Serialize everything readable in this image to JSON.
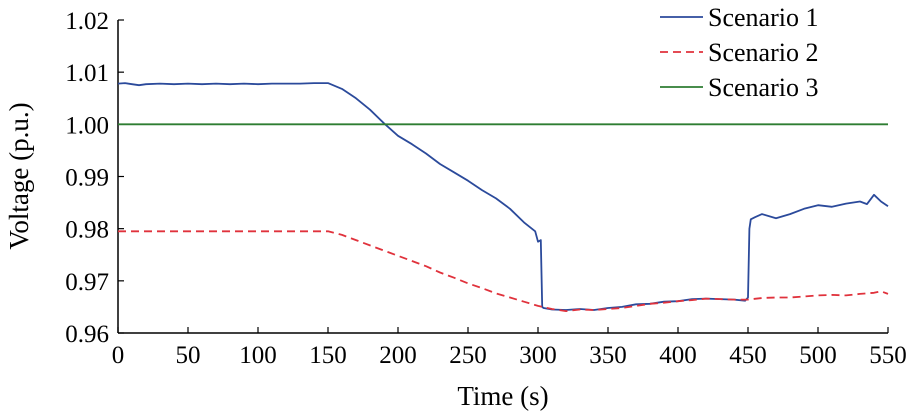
{
  "chart_data": {
    "type": "line",
    "xlabel": "Time (s)",
    "ylabel": "Voltage (p.u.)",
    "xlim": [
      0,
      550
    ],
    "ylim": [
      0.96,
      1.02
    ],
    "xticks": [
      "0",
      "50",
      "100",
      "150",
      "200",
      "250",
      "300",
      "350",
      "400",
      "450",
      "500",
      "550"
    ],
    "yticks": [
      "0.96",
      "0.97",
      "0.98",
      "0.99",
      "1.00",
      "1.01",
      "1.02"
    ],
    "grid": false,
    "legend_position": "top-right",
    "series": [
      {
        "name": "Scenario 1",
        "color": "#2b4a9b",
        "style": "solid",
        "x": [
          0,
          5,
          10,
          15,
          20,
          30,
          40,
          50,
          60,
          70,
          80,
          90,
          100,
          110,
          120,
          130,
          140,
          150,
          160,
          170,
          180,
          190,
          200,
          210,
          220,
          230,
          240,
          250,
          260,
          270,
          280,
          290,
          298,
          300,
          302,
          303,
          304,
          310,
          320,
          330,
          340,
          350,
          360,
          370,
          380,
          390,
          400,
          410,
          420,
          430,
          440,
          448,
          450,
          451,
          452,
          455,
          460,
          470,
          480,
          490,
          500,
          510,
          520,
          530,
          535,
          540,
          545,
          550
        ],
        "y": [
          1.0078,
          1.0079,
          1.0077,
          1.0075,
          1.0077,
          1.0078,
          1.0077,
          1.0078,
          1.0077,
          1.0078,
          1.0077,
          1.0078,
          1.0077,
          1.0078,
          1.0078,
          1.0078,
          1.0079,
          1.0079,
          1.0068,
          1.005,
          1.0028,
          1.0002,
          0.9978,
          0.9962,
          0.9944,
          0.9924,
          0.9908,
          0.9892,
          0.9874,
          0.9858,
          0.9838,
          0.9812,
          0.9795,
          0.9775,
          0.9778,
          0.965,
          0.9648,
          0.9645,
          0.9644,
          0.9646,
          0.9644,
          0.9648,
          0.965,
          0.9655,
          0.9656,
          0.966,
          0.9661,
          0.9665,
          0.9666,
          0.9665,
          0.9664,
          0.9662,
          0.9668,
          0.98,
          0.9818,
          0.9822,
          0.9828,
          0.982,
          0.9828,
          0.9838,
          0.9845,
          0.9842,
          0.9848,
          0.9852,
          0.9847,
          0.9865,
          0.9852,
          0.9843
        ]
      },
      {
        "name": "Scenario 2",
        "color": "#e0323c",
        "style": "dashed",
        "x": [
          0,
          50,
          100,
          150,
          160,
          170,
          180,
          190,
          200,
          210,
          220,
          230,
          240,
          250,
          260,
          270,
          280,
          290,
          300,
          310,
          320,
          330,
          340,
          350,
          360,
          370,
          380,
          390,
          400,
          410,
          420,
          430,
          440,
          450,
          460,
          470,
          480,
          490,
          500,
          510,
          520,
          530,
          540,
          545,
          550
        ],
        "y": [
          0.9795,
          0.9795,
          0.9795,
          0.9795,
          0.9788,
          0.9778,
          0.9768,
          0.9758,
          0.9748,
          0.9738,
          0.9728,
          0.9716,
          0.9706,
          0.9695,
          0.9686,
          0.9676,
          0.9668,
          0.966,
          0.9652,
          0.9646,
          0.9642,
          0.9645,
          0.9644,
          0.9646,
          0.9648,
          0.9652,
          0.9656,
          0.9658,
          0.9661,
          0.9663,
          0.9666,
          0.9665,
          0.9664,
          0.9664,
          0.9667,
          0.9668,
          0.9668,
          0.967,
          0.9672,
          0.9673,
          0.9672,
          0.9675,
          0.9677,
          0.968,
          0.9675
        ]
      },
      {
        "name": "Scenario 3",
        "color": "#2e7d32",
        "style": "solid",
        "x": [
          0,
          550
        ],
        "y": [
          1.0,
          1.0
        ]
      }
    ]
  }
}
